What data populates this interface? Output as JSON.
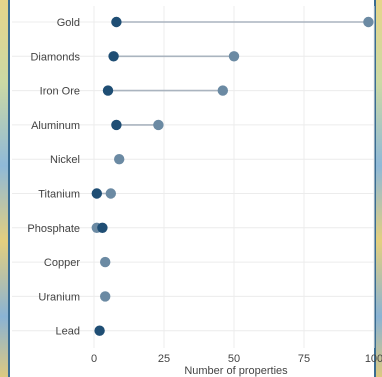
{
  "colors": {
    "start_dot": "#1f4e74",
    "end_dot": "#6b8aa3",
    "connector": "#aab4bf",
    "map_border": "#3a6c91"
  },
  "chart_data": {
    "type": "dumbbell",
    "title": "",
    "xlabel": "Number of properties",
    "ylabel": "",
    "xlim": [
      0,
      100
    ],
    "x_ticks": [
      0,
      25,
      50,
      75,
      100
    ],
    "grid": true,
    "categories": [
      "Gold",
      "Diamonds",
      "Iron Ore",
      "Aluminum",
      "Nickel",
      "Titanium",
      "Phosphate",
      "Copper",
      "Uranium",
      "Lead"
    ],
    "series": [
      {
        "values": [
          8,
          7,
          5,
          8,
          null,
          1,
          3,
          null,
          null,
          2
        ]
      },
      {
        "values": [
          98,
          50,
          46,
          23,
          9,
          6,
          1,
          4,
          4,
          null
        ]
      }
    ]
  }
}
